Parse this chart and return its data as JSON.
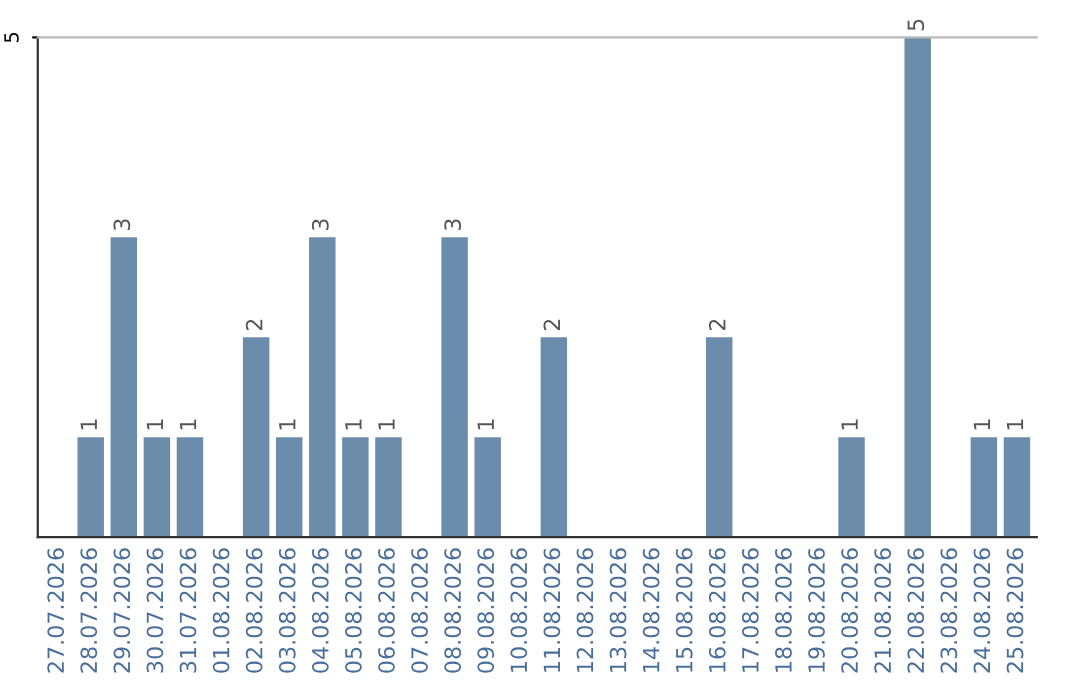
{
  "chart_data": {
    "type": "bar",
    "categories": [
      "27.07.2026",
      "28.07.2026",
      "29.07.2026",
      "30.07.2026",
      "31.07.2026",
      "01.08.2026",
      "02.08.2026",
      "03.08.2026",
      "04.08.2026",
      "05.08.2026",
      "06.08.2026",
      "07.08.2026",
      "08.08.2026",
      "09.08.2026",
      "10.08.2026",
      "11.08.2026",
      "12.08.2026",
      "13.08.2026",
      "14.08.2026",
      "15.08.2026",
      "16.08.2026",
      "17.08.2026",
      "18.08.2026",
      "19.08.2026",
      "20.08.2026",
      "21.08.2026",
      "22.08.2026",
      "23.08.2026",
      "24.08.2026",
      "25.08.2026"
    ],
    "values": [
      0,
      1,
      3,
      1,
      1,
      0,
      2,
      1,
      3,
      1,
      1,
      0,
      3,
      1,
      0,
      2,
      0,
      0,
      0,
      0,
      2,
      0,
      0,
      0,
      1,
      0,
      5,
      0,
      1,
      1
    ],
    "value_labels": [
      null,
      "1",
      "3",
      "1",
      "1",
      null,
      "2",
      "1",
      "3",
      "1",
      "1",
      null,
      "3",
      "1",
      null,
      "2",
      null,
      null,
      null,
      null,
      "2",
      null,
      null,
      null,
      "1",
      null,
      "5",
      null,
      "1",
      "1"
    ],
    "color": "#6b8dab",
    "ylim": [
      0,
      5
    ],
    "yticks": [
      5
    ],
    "legend": false
  }
}
